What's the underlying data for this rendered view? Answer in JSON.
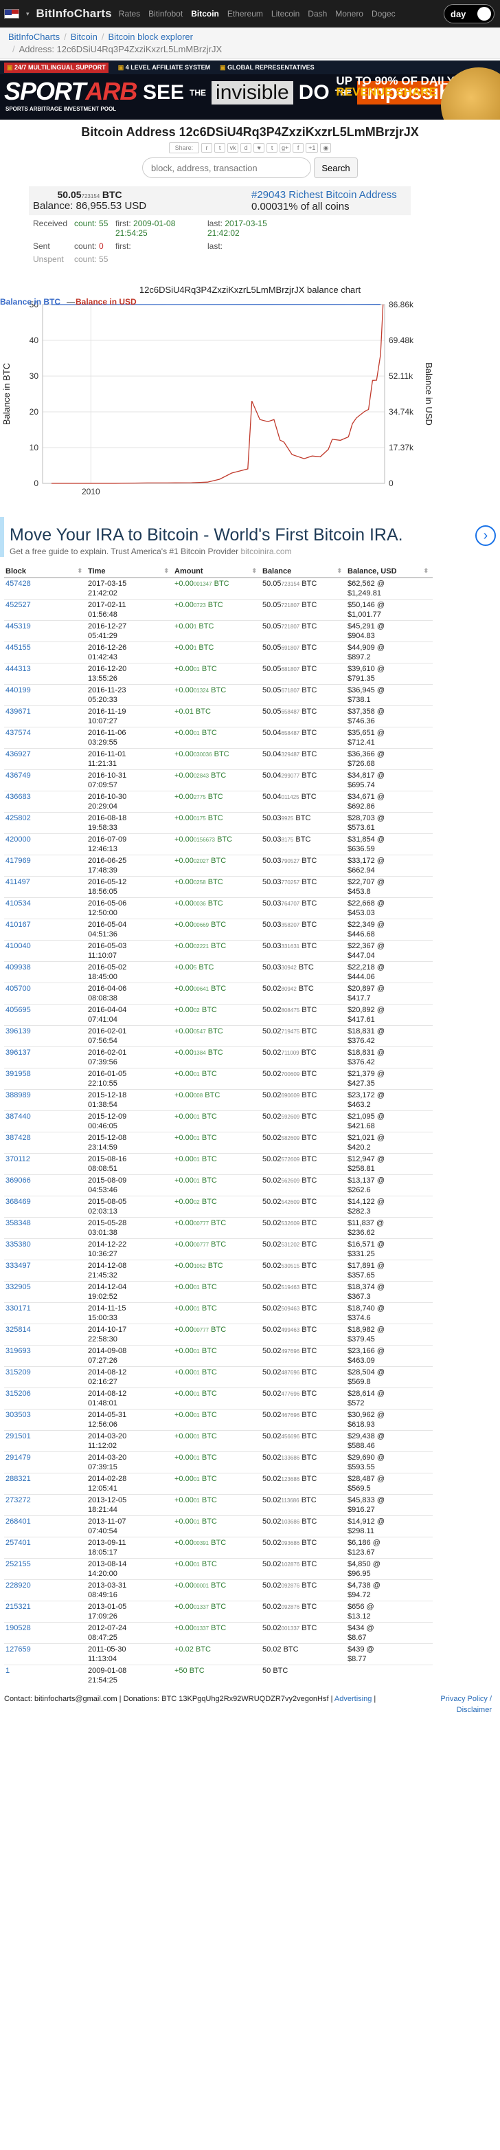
{
  "nav": {
    "brand": "BitInfoCharts",
    "links": [
      "Rates",
      "Bitinfobot",
      "Bitcoin",
      "Ethereum",
      "Litecoin",
      "Dash",
      "Monero",
      "Dogec"
    ],
    "active_link": "Bitcoin",
    "theme_toggle": "day"
  },
  "breadcrumb": {
    "items": [
      "BitInfoCharts",
      "Bitcoin",
      "Bitcoin block explorer"
    ],
    "current": "Address: 12c6DSiU4Rq3P4ZxziKxzrL5LmMBrzjrJX"
  },
  "ad_banner": {
    "top_items": [
      "24/7 MULTILINGUAL SUPPORT",
      "4 LEVEL AFFILIATE SYSTEM",
      "GLOBAL REPRESENTATIVES"
    ],
    "brand_a": "SPORT",
    "brand_b": "ARB",
    "tagline": "SPORTS ARBITRAGE INVESTMENT POOL",
    "see": "SEE",
    "the": "THE",
    "invisible": "invisible",
    "do": "DO",
    "the2": "THE",
    "impossible": "impossible",
    "upto_line1": "UP TO 90% OF DAILY",
    "upto_line2": "REVENUE SHARE"
  },
  "title": "Bitcoin Address 12c6DSiU4Rq3P4ZxziKxzrL5LmMBrzjrJX",
  "share": {
    "label": "Share:",
    "plus_count": "+1"
  },
  "search": {
    "placeholder": "block, address, transaction",
    "button": "Search"
  },
  "summary": {
    "balance_btc_main": "50.05",
    "balance_btc_small": "723154",
    "balance_unit": "BTC",
    "balance_label": "Balance:",
    "balance_usd": "86,955.53 USD",
    "rich_link": "#29043 Richest Bitcoin Address",
    "percent": "0.00031% of all coins",
    "received_label": "Received",
    "received_count": "count: 55",
    "received_first_label": "first:",
    "received_first": "2009-01-08 21:54:25",
    "received_last_label": "last:",
    "received_last": "2017-03-15 21:42:02",
    "sent_label": "Sent",
    "sent_count_label": "count:",
    "sent_count": "0",
    "sent_first_label": "first:",
    "sent_last_label": "last:",
    "unspent_label": "Unspent",
    "unspent_count": "count: 55"
  },
  "chart_data": {
    "type": "line",
    "title": "12c6DSiU4Rq3P4ZxziKxzrL5LmMBrzjrJX balance chart",
    "legend": [
      "Balance in BTC",
      "Balance in USD"
    ],
    "legend_sep": "—",
    "legend_position": "top-left",
    "ylabel_left": "Balance in BTC",
    "ylabel_right": "Balance in USD",
    "ylim_left": [
      0,
      50
    ],
    "ylim_right": [
      0,
      86.86
    ],
    "yticks_left": [
      "0",
      "10",
      "20",
      "30",
      "40",
      "50"
    ],
    "yticks_right": [
      "0",
      "17.37k",
      "34.74k",
      "52.11k",
      "69.48k",
      "86.86k"
    ],
    "xticks": [
      "2010"
    ],
    "xlim": [
      2008.8,
      2017.3
    ],
    "series": [
      {
        "name": "Balance in BTC",
        "color": "#3a6cc8",
        "points": [
          [
            2009.02,
            50
          ],
          [
            2017.2,
            50.05
          ]
        ]
      },
      {
        "name": "Balance in USD",
        "color": "#c0392b",
        "points": [
          [
            2009.02,
            0
          ],
          [
            2010.6,
            0
          ],
          [
            2011.4,
            0.2
          ],
          [
            2011.9,
            0.2
          ],
          [
            2012.5,
            0.3
          ],
          [
            2012.9,
            0.6
          ],
          [
            2013.2,
            2
          ],
          [
            2013.5,
            5
          ],
          [
            2013.9,
            7
          ],
          [
            2014.0,
            40
          ],
          [
            2014.2,
            31
          ],
          [
            2014.4,
            30
          ],
          [
            2014.55,
            31
          ],
          [
            2014.7,
            21
          ],
          [
            2014.8,
            20
          ],
          [
            2015.0,
            14
          ],
          [
            2015.3,
            12
          ],
          [
            2015.5,
            13.3
          ],
          [
            2015.7,
            12.9
          ],
          [
            2015.9,
            16.5
          ],
          [
            2016.0,
            21.4
          ],
          [
            2016.2,
            20.9
          ],
          [
            2016.4,
            22.6
          ],
          [
            2016.5,
            29
          ],
          [
            2016.6,
            31.8
          ],
          [
            2016.8,
            34.9
          ],
          [
            2016.9,
            35.9
          ],
          [
            2017.0,
            50
          ],
          [
            2017.1,
            50.1
          ],
          [
            2017.2,
            62.6
          ],
          [
            2017.26,
            86.86
          ]
        ]
      }
    ]
  },
  "ira_ad": {
    "title": "Move Your IRA to Bitcoin - World's First Bitcoin IRA.",
    "subtitle": "Get a free guide to explain. Trust America's #1 Bitcoin Provider",
    "domain": "bitcoinira.com"
  },
  "table": {
    "headers": [
      "Block",
      "Time",
      "Amount",
      "Balance",
      "Balance, USD"
    ],
    "rows": [
      [
        "457428",
        "2017-03-15",
        "21:42:02",
        "+0.00",
        "001347",
        "50.05",
        "723154",
        "$62,562 @",
        "$1,249.81"
      ],
      [
        "452527",
        "2017-02-11",
        "01:56:48",
        "+0.00",
        "0723",
        "50.05",
        "721807",
        "$50,146 @",
        "$1,001.77"
      ],
      [
        "445319",
        "2016-12-27",
        "05:41:29",
        "+0.00",
        "1",
        "50.05",
        "721807",
        "$45,291 @",
        "$904.83"
      ],
      [
        "445155",
        "2016-12-26",
        "01:42:43",
        "+0.00",
        "1",
        "50.05",
        "691807",
        "$44,909 @",
        "$897.2"
      ],
      [
        "444313",
        "2016-12-20",
        "13:55:26",
        "+0.00",
        "01",
        "50.05",
        "681807",
        "$39,610 @",
        "$791.35"
      ],
      [
        "440199",
        "2016-11-23",
        "05:20:33",
        "+0.00",
        "01324",
        "50.05",
        "671807",
        "$36,945 @",
        "$738.1"
      ],
      [
        "439671",
        "2016-11-19",
        "10:07:27",
        "+0.01",
        "",
        "50.05",
        "658487",
        "$37,358 @",
        "$746.36"
      ],
      [
        "437574",
        "2016-11-06",
        "03:29:55",
        "+0.00",
        "01",
        "50.04",
        "658487",
        "$35,651 @",
        "$712.41"
      ],
      [
        "436927",
        "2016-11-01",
        "11:21:31",
        "+0.00",
        "030036",
        "50.04",
        "329487",
        "$36,366 @",
        "$726.68"
      ],
      [
        "436749",
        "2016-10-31",
        "07:09:57",
        "+0.00",
        "02843",
        "50.04",
        "299077",
        "$34,817 @",
        "$695.74"
      ],
      [
        "436683",
        "2016-10-30",
        "20:29:04",
        "+0.00",
        "2775",
        "50.04",
        "011425",
        "$34,671 @",
        "$692.86"
      ],
      [
        "425802",
        "2016-08-18",
        "19:58:33",
        "+0.00",
        "0175",
        "50.03",
        "9925",
        "$28,703 @",
        "$573.61"
      ],
      [
        "420000",
        "2016-07-09",
        "12:46:13",
        "+0.00",
        "0156673",
        "50.03",
        "8175",
        "$31,854 @",
        "$636.59"
      ],
      [
        "417969",
        "2016-06-25",
        "17:48:39",
        "+0.00",
        "02027",
        "50.03",
        "790527",
        "$33,172 @",
        "$662.94"
      ],
      [
        "411497",
        "2016-05-12",
        "18:56:05",
        "+0.00",
        "0258",
        "50.03",
        "770257",
        "$22,707 @",
        "$453.8"
      ],
      [
        "410534",
        "2016-05-06",
        "12:50:00",
        "+0.00",
        "0036",
        "50.03",
        "764707",
        "$22,668 @",
        "$453.03"
      ],
      [
        "410167",
        "2016-05-04",
        "04:51:36",
        "+0.00",
        "00669",
        "50.03",
        "358207",
        "$22,349 @",
        "$446.68"
      ],
      [
        "410040",
        "2016-05-03",
        "11:10:07",
        "+0.00",
        "02221",
        "50.03",
        "331631",
        "$22,367 @",
        "$447.04"
      ],
      [
        "409938",
        "2016-05-02",
        "18:45:00",
        "+0.00",
        "5",
        "50.03",
        "30942",
        "$22,218 @",
        "$444.06"
      ],
      [
        "405700",
        "2016-04-06",
        "08:08:38",
        "+0.00",
        "00641",
        "50.02",
        "80942",
        "$20,897 @",
        "$417.7"
      ],
      [
        "405695",
        "2016-04-04",
        "07:41:04",
        "+0.00",
        "02",
        "50.02",
        "808475",
        "$20,892 @",
        "$417.61"
      ],
      [
        "396139",
        "2016-02-01",
        "07:56:54",
        "+0.00",
        "0547",
        "50.02",
        "719475",
        "$18,831 @",
        "$376.42"
      ],
      [
        "396137",
        "2016-02-01",
        "07:39:56",
        "+0.00",
        "1384",
        "50.02",
        "711009",
        "$18,831 @",
        "$376.42"
      ],
      [
        "391958",
        "2016-01-05",
        "22:10:55",
        "+0.00",
        "01",
        "50.02",
        "700609",
        "$21,379 @",
        "$427.35"
      ],
      [
        "388989",
        "2015-12-18",
        "01:38:54",
        "+0.00",
        "008",
        "50.02",
        "690609",
        "$23,172 @",
        "$463.2"
      ],
      [
        "387440",
        "2015-12-09",
        "00:46:05",
        "+0.00",
        "01",
        "50.02",
        "592609",
        "$21,095 @",
        "$421.68"
      ],
      [
        "387428",
        "2015-12-08",
        "23:14:59",
        "+0.00",
        "01",
        "50.02",
        "582609",
        "$21,021 @",
        "$420.2"
      ],
      [
        "370112",
        "2015-08-16",
        "08:08:51",
        "+0.00",
        "01",
        "50.02",
        "572609",
        "$12,947 @",
        "$258.81"
      ],
      [
        "369066",
        "2015-08-09",
        "04:53:46",
        "+0.00",
        "01",
        "50.02",
        "562609",
        "$13,137 @",
        "$262.6"
      ],
      [
        "368469",
        "2015-08-05",
        "02:03:13",
        "+0.00",
        "02",
        "50.02",
        "542609",
        "$14,122 @",
        "$282.3"
      ],
      [
        "358348",
        "2015-05-28",
        "03:01:38",
        "+0.00",
        "00777",
        "50.02",
        "532609",
        "$11,837 @",
        "$236.62"
      ],
      [
        "335380",
        "2014-12-22",
        "10:36:27",
        "+0.00",
        "00777",
        "50.02",
        "531202",
        "$16,571 @",
        "$331.25"
      ],
      [
        "333497",
        "2014-12-08",
        "21:45:32",
        "+0.00",
        "1052",
        "50.02",
        "530515",
        "$17,891 @",
        "$357.65"
      ],
      [
        "332905",
        "2014-12-04",
        "19:02:52",
        "+0.00",
        "01",
        "50.02",
        "519463",
        "$18,374 @",
        "$367.3"
      ],
      [
        "330171",
        "2014-11-15",
        "15:00:33",
        "+0.00",
        "01",
        "50.02",
        "509463",
        "$18,740 @",
        "$374.6"
      ],
      [
        "325814",
        "2014-10-17",
        "22:58:30",
        "+0.00",
        "00777",
        "50.02",
        "499463",
        "$18,982 @",
        "$379.45"
      ],
      [
        "319693",
        "2014-09-08",
        "07:27:26",
        "+0.00",
        "01",
        "50.02",
        "497696",
        "$23,166 @",
        "$463.09"
      ],
      [
        "315209",
        "2014-08-12",
        "02:16:27",
        "+0.00",
        "01",
        "50.02",
        "487696",
        "$28,504 @",
        "$569.8"
      ],
      [
        "315206",
        "2014-08-12",
        "01:48:01",
        "+0.00",
        "01",
        "50.02",
        "477696",
        "$28,614 @",
        "$572"
      ],
      [
        "303503",
        "2014-05-31",
        "12:56:06",
        "+0.00",
        "01",
        "50.02",
        "467696",
        "$30,962 @",
        "$618.93"
      ],
      [
        "291501",
        "2014-03-20",
        "11:12:02",
        "+0.00",
        "01",
        "50.02",
        "456696",
        "$29,438 @",
        "$588.46"
      ],
      [
        "291479",
        "2014-03-20",
        "07:39:15",
        "+0.00",
        "01",
        "50.02",
        "133686",
        "$29,690 @",
        "$593.55"
      ],
      [
        "288321",
        "2014-02-28",
        "12:05:41",
        "+0.00",
        "01",
        "50.02",
        "123686",
        "$28,487 @",
        "$569.5"
      ],
      [
        "273272",
        "2013-12-05",
        "18:21:44",
        "+0.00",
        "01",
        "50.02",
        "113686",
        "$45,833 @",
        "$916.27"
      ],
      [
        "268401",
        "2013-11-07",
        "07:40:54",
        "+0.00",
        "01",
        "50.02",
        "103686",
        "$14,912 @",
        "$298.11"
      ],
      [
        "257401",
        "2013-09-11",
        "18:05:17",
        "+0.00",
        "00391",
        "50.02",
        "093686",
        "$6,186 @",
        "$123.67"
      ],
      [
        "252155",
        "2013-08-14",
        "14:20:00",
        "+0.00",
        "01",
        "50.02",
        "102876",
        "$4,850 @",
        "$96.95"
      ],
      [
        "228920",
        "2013-03-31",
        "08:49:16",
        "+0.00",
        "00001",
        "50.02",
        "092876",
        "$4,738 @",
        "$94.72"
      ],
      [
        "215321",
        "2013-01-05",
        "17:09:26",
        "+0.00",
        "01337",
        "50.02",
        "092876",
        "$656 @",
        "$13.12"
      ],
      [
        "190528",
        "2012-07-24",
        "08:47:25",
        "+0.00",
        "01337",
        "50.02",
        "001337",
        "$434 @",
        "$8.67"
      ],
      [
        "127659",
        "2011-05-30",
        "11:13:04",
        "+0.02",
        "",
        "50.02",
        "",
        "$439 @",
        "$8.77"
      ],
      [
        "1",
        "2009-01-08",
        "21:54:25",
        "+50",
        "",
        "50",
        "",
        "",
        ""
      ]
    ]
  },
  "footer": {
    "contact": "Contact: bitinfocharts@gmail.com | Donations: BTC 13KPgqUhg2Rx92WRUQDZR7vy2vegonHsf |",
    "advertising": "Advertising",
    "privacy": "Privacy Policy /",
    "disclaimer": "Disclaimer"
  }
}
